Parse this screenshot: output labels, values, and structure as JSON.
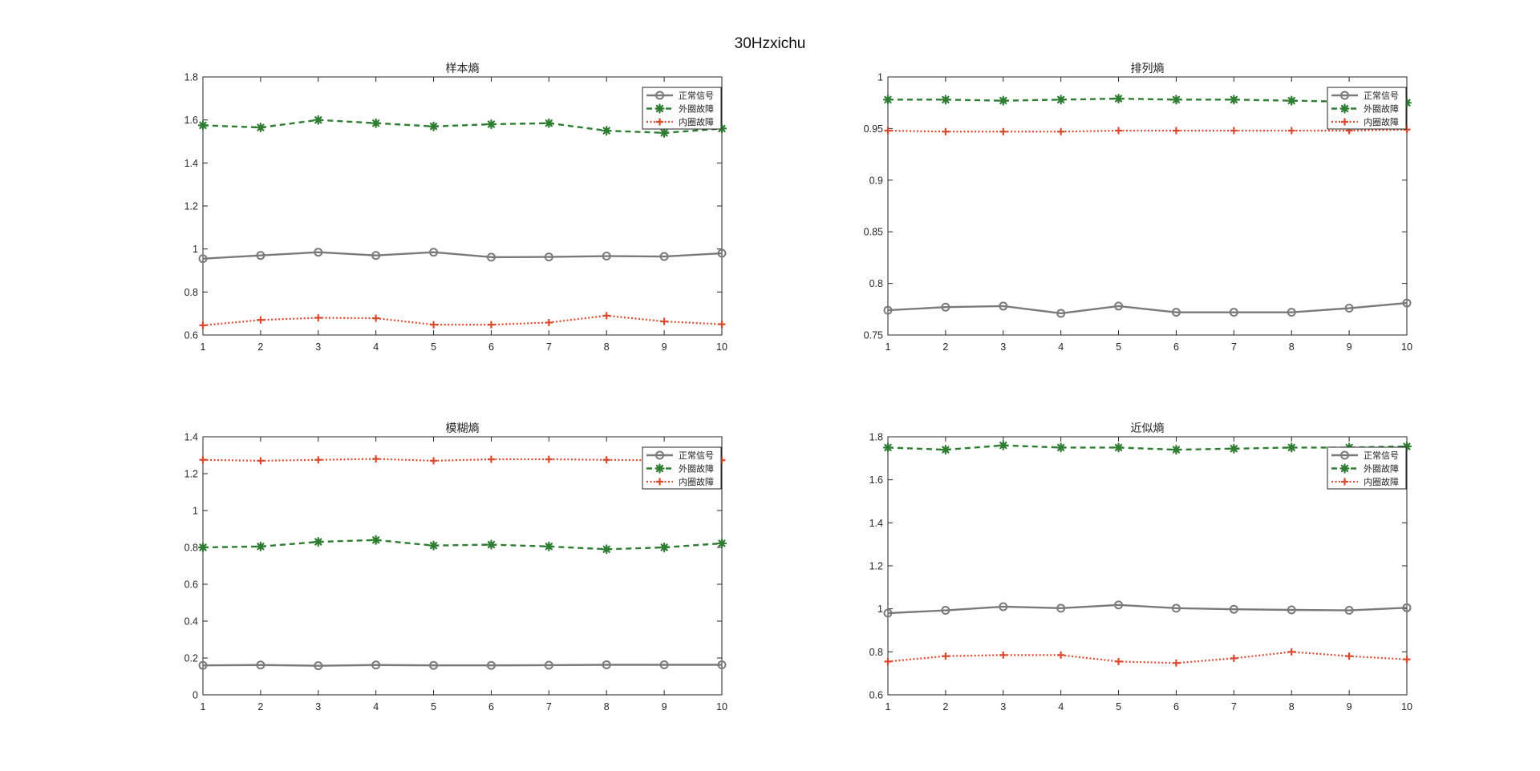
{
  "figure": {
    "suptitle": "30Hzxichu"
  },
  "colors": {
    "normal": "#7a7a7a",
    "outer": "#2e7d32",
    "inner": "#d84a2e"
  },
  "chart_data": [
    {
      "type": "line",
      "title": "样本熵",
      "xlabel": "",
      "ylabel": "",
      "x": [
        1,
        2,
        3,
        4,
        5,
        6,
        7,
        8,
        9,
        10
      ],
      "xlim": [
        1,
        10
      ],
      "ylim": [
        0.6,
        1.8
      ],
      "xticks": [
        "1",
        "2",
        "3",
        "4",
        "5",
        "6",
        "7",
        "8",
        "9",
        "10"
      ],
      "yticks": [
        "0.6",
        "0.8",
        "1",
        "1.2",
        "1.4",
        "1.6",
        "1.8"
      ],
      "grid": true,
      "legend_position": "top-right",
      "series": [
        {
          "name": "正常信号",
          "style": "solid-circle",
          "values": [
            0.955,
            0.97,
            0.985,
            0.97,
            0.985,
            0.962,
            0.963,
            0.967,
            0.965,
            0.98
          ]
        },
        {
          "name": "外圈故障",
          "style": "dashed-star",
          "values": [
            1.575,
            1.565,
            1.6,
            1.585,
            1.57,
            1.58,
            1.585,
            1.55,
            1.54,
            1.56
          ]
        },
        {
          "name": "内圈故障",
          "style": "dotted-plus",
          "values": [
            0.645,
            0.67,
            0.68,
            0.678,
            0.648,
            0.648,
            0.658,
            0.69,
            0.663,
            0.65
          ]
        }
      ]
    },
    {
      "type": "line",
      "title": "排列熵",
      "xlabel": "",
      "ylabel": "",
      "x": [
        1,
        2,
        3,
        4,
        5,
        6,
        7,
        8,
        9,
        10
      ],
      "xlim": [
        1,
        10
      ],
      "ylim": [
        0.75,
        1.0
      ],
      "xticks": [
        "1",
        "2",
        "3",
        "4",
        "5",
        "6",
        "7",
        "8",
        "9",
        "10"
      ],
      "yticks": [
        "0.75",
        "0.8",
        "0.85",
        "0.9",
        "0.95",
        "1"
      ],
      "grid": true,
      "legend_position": "top-right",
      "series": [
        {
          "name": "正常信号",
          "style": "solid-circle",
          "values": [
            0.774,
            0.777,
            0.778,
            0.771,
            0.778,
            0.772,
            0.772,
            0.772,
            0.776,
            0.781
          ]
        },
        {
          "name": "外圈故障",
          "style": "dashed-star",
          "values": [
            0.978,
            0.978,
            0.977,
            0.978,
            0.979,
            0.978,
            0.978,
            0.977,
            0.976,
            0.975
          ]
        },
        {
          "name": "内圈故障",
          "style": "dotted-plus",
          "values": [
            0.948,
            0.947,
            0.947,
            0.947,
            0.948,
            0.948,
            0.948,
            0.948,
            0.948,
            0.949
          ]
        }
      ]
    },
    {
      "type": "line",
      "title": "模糊熵",
      "xlabel": "",
      "ylabel": "",
      "x": [
        1,
        2,
        3,
        4,
        5,
        6,
        7,
        8,
        9,
        10
      ],
      "xlim": [
        1,
        10
      ],
      "ylim": [
        0,
        1.4
      ],
      "xticks": [
        "1",
        "2",
        "3",
        "4",
        "5",
        "6",
        "7",
        "8",
        "9",
        "10"
      ],
      "yticks": [
        "0",
        "0.2",
        "0.4",
        "0.6",
        "0.8",
        "1",
        "1.2",
        "1.4"
      ],
      "grid": true,
      "legend_position": "top-right",
      "series": [
        {
          "name": "正常信号",
          "style": "solid-circle",
          "values": [
            0.16,
            0.162,
            0.158,
            0.162,
            0.16,
            0.16,
            0.161,
            0.163,
            0.163,
            0.163
          ]
        },
        {
          "name": "外圈故障",
          "style": "dashed-star",
          "values": [
            0.8,
            0.805,
            0.83,
            0.84,
            0.81,
            0.815,
            0.805,
            0.79,
            0.8,
            0.822
          ]
        },
        {
          "name": "内圈故障",
          "style": "dotted-plus",
          "values": [
            1.275,
            1.27,
            1.275,
            1.28,
            1.27,
            1.278,
            1.278,
            1.275,
            1.272,
            1.273
          ]
        }
      ]
    },
    {
      "type": "line",
      "title": "近似熵",
      "xlabel": "",
      "ylabel": "",
      "x": [
        1,
        2,
        3,
        4,
        5,
        6,
        7,
        8,
        9,
        10
      ],
      "xlim": [
        1,
        10
      ],
      "ylim": [
        0.6,
        1.8
      ],
      "xticks": [
        "1",
        "2",
        "3",
        "4",
        "5",
        "6",
        "7",
        "8",
        "9",
        "10"
      ],
      "yticks": [
        "0.6",
        "0.8",
        "1",
        "1.2",
        "1.4",
        "1.6",
        "1.8"
      ],
      "grid": true,
      "legend_position": "top-right",
      "series": [
        {
          "name": "正常信号",
          "style": "solid-circle",
          "values": [
            0.98,
            0.993,
            1.01,
            1.003,
            1.018,
            1.003,
            0.998,
            0.995,
            0.993,
            1.005
          ]
        },
        {
          "name": "外圈故障",
          "style": "dashed-star",
          "values": [
            1.75,
            1.74,
            1.76,
            1.75,
            1.75,
            1.74,
            1.745,
            1.75,
            1.75,
            1.755
          ]
        },
        {
          "name": "内圈故障",
          "style": "dotted-plus",
          "values": [
            0.755,
            0.78,
            0.785,
            0.785,
            0.755,
            0.748,
            0.77,
            0.8,
            0.78,
            0.765
          ]
        }
      ]
    }
  ]
}
